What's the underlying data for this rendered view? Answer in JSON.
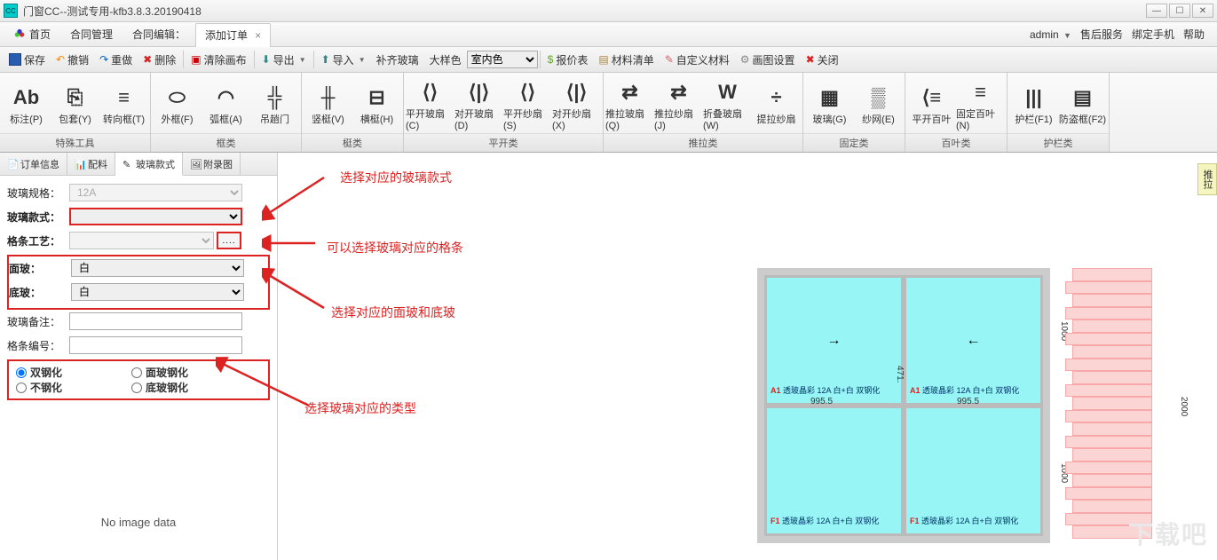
{
  "window": {
    "title": "门窗CC--测试专用-kfb3.8.3.20190418",
    "app_icon_text": "CC"
  },
  "menubar": {
    "home": "首页",
    "contract_mgmt": "合同管理",
    "contract_edit": "合同编辑：",
    "add_order": "添加订单",
    "user": "admin",
    "after_sales": "售后服务",
    "bind_phone": "绑定手机",
    "help": "帮助"
  },
  "toolbar": {
    "save": "保存",
    "undo": "撤销",
    "redo": "重做",
    "delete": "删除",
    "clear_canvas": "清除画布",
    "export": "导出",
    "import": "导入",
    "fill_glass": "补齐玻璃",
    "sample": "大样色",
    "indoor": "室内色",
    "price_sheet": "报价表",
    "material_list": "材料清单",
    "custom_material": "自定义材料",
    "draw_settings": "画图设置",
    "close": "关闭"
  },
  "ribbon": {
    "g1": {
      "label": "特殊工具",
      "items": [
        {
          "icon": "Ab",
          "label": "标注(P)"
        },
        {
          "icon": "⎘",
          "label": "包套(Y)"
        },
        {
          "icon": "≡",
          "label": "转向框(T)"
        }
      ]
    },
    "g2": {
      "label": "框类",
      "items": [
        {
          "icon": "⬭",
          "label": "外框(F)"
        },
        {
          "icon": "◠",
          "label": "弧框(A)"
        },
        {
          "icon": "╬",
          "label": "吊趟门"
        }
      ]
    },
    "g3": {
      "label": "梃类",
      "items": [
        {
          "icon": "╫",
          "label": "竖梃(V)"
        },
        {
          "icon": "⊟",
          "label": "横梃(H)"
        }
      ]
    },
    "g4": {
      "label": "平开类",
      "items": [
        {
          "icon": "⟨⟩",
          "label": "平开玻扇(C)"
        },
        {
          "icon": "⟨|⟩",
          "label": "对开玻扇(D)"
        },
        {
          "icon": "⟨⟩",
          "label": "平开纱扇(S)"
        },
        {
          "icon": "⟨|⟩",
          "label": "对开纱扇(X)"
        }
      ]
    },
    "g5": {
      "label": "推拉类",
      "items": [
        {
          "icon": "⇄",
          "label": "推拉玻扇(Q)"
        },
        {
          "icon": "⇄",
          "label": "推拉纱扇(J)"
        },
        {
          "icon": "W",
          "label": "折叠玻扇(W)"
        },
        {
          "icon": "÷",
          "label": "提拉纱扇"
        }
      ]
    },
    "g6": {
      "label": "固定类",
      "items": [
        {
          "icon": "▦",
          "label": "玻璃(G)"
        },
        {
          "icon": "▒",
          "label": "纱网(E)"
        }
      ]
    },
    "g7": {
      "label": "百叶类",
      "items": [
        {
          "icon": "⟨≡",
          "label": "平开百叶"
        },
        {
          "icon": "≡",
          "label": "固定百叶(N)"
        }
      ]
    },
    "g8": {
      "label": "护栏类",
      "items": [
        {
          "icon": "|||",
          "label": "护栏(F1)"
        },
        {
          "icon": "▤",
          "label": "防盗框(F2)"
        }
      ]
    }
  },
  "sidetabs": {
    "order_info": "订单信息",
    "ingredients": "配料",
    "glass_style": "玻璃款式",
    "appendix": "附录图"
  },
  "form": {
    "glass_spec": "玻璃规格：",
    "glass_spec_val": "12A",
    "glass_style": "玻璃款式：",
    "grid_craft": "格条工艺：",
    "face_glass": "面玻：",
    "face_glass_val": "白",
    "bottom_glass": "底玻：",
    "bottom_glass_val": "白",
    "glass_remark": "玻璃备注：",
    "grid_number": "格条编号：",
    "r1": "双钢化",
    "r2": "面玻钢化",
    "r3": "不钢化",
    "r4": "底玻钢化",
    "no_image": "No image data"
  },
  "annotations": {
    "a1": "选择对应的玻璃款式",
    "a2": "可以选择玻璃对应的格条",
    "a3": "选择对应的面玻和底玻",
    "a4": "选择玻璃对应的类型"
  },
  "drawing": {
    "panel_a1": "A1",
    "panel_f1": "F1",
    "panel_text": "透玻晶彩 12A 白+白  双钢化",
    "dim_995": "995.5",
    "dim_471": "471.",
    "dim_1000": "1000",
    "dim_2000": "2000"
  },
  "vtab": "推拉",
  "watermark": "下载吧"
}
